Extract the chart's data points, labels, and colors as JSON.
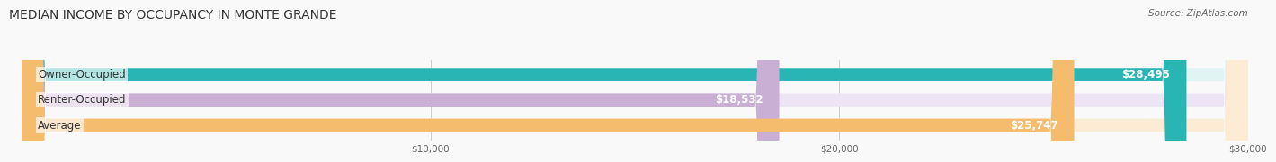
{
  "title": "MEDIAN INCOME BY OCCUPANCY IN MONTE GRANDE",
  "source": "Source: ZipAtlas.com",
  "categories": [
    "Owner-Occupied",
    "Renter-Occupied",
    "Average"
  ],
  "values": [
    28495,
    18532,
    25747
  ],
  "bar_colors": [
    "#2ab5b5",
    "#c9afd4",
    "#f5bc6e"
  ],
  "bar_bg_colors": [
    "#e0f4f4",
    "#ede5f5",
    "#fdecd3"
  ],
  "value_labels": [
    "$28,495",
    "$18,532",
    "$25,747"
  ],
  "xlim": [
    0,
    30000
  ],
  "xticks": [
    10000,
    20000,
    30000
  ],
  "xtick_labels": [
    "$10,000",
    "$20,000",
    "$30,000"
  ],
  "title_fontsize": 10,
  "source_fontsize": 7.5,
  "label_fontsize": 8.5,
  "value_fontsize": 8.5,
  "bar_height": 0.52,
  "background_color": "#f9f9f9",
  "value_label_color_inside": "#ffffff",
  "value_label_color_outside": "#555555"
}
